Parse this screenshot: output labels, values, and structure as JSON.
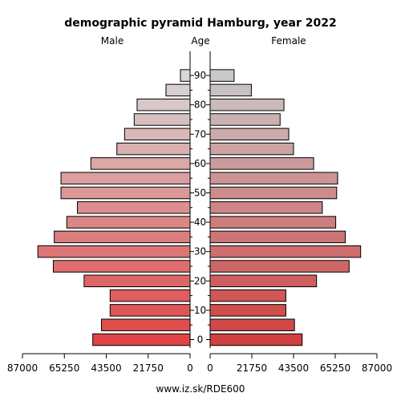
{
  "chart_data": {
    "type": "bar",
    "orientation": "horizontal-pyramid",
    "title": "demographic pyramid Hamburg, year 2022",
    "left_label": "Male",
    "center_label": "Age",
    "right_label": "Female",
    "footer": "www.iz.sk/RDE600",
    "age_groups": [
      "0-4",
      "5-9",
      "10-14",
      "15-19",
      "20-24",
      "25-29",
      "30-34",
      "35-39",
      "40-44",
      "45-49",
      "50-54",
      "55-59",
      "60-64",
      "65-69",
      "70-74",
      "75-79",
      "80-84",
      "85-89",
      "90+"
    ],
    "age_tick_labels": [
      "0",
      "10",
      "20",
      "30",
      "40",
      "50",
      "60",
      "70",
      "80",
      "90"
    ],
    "value_ticks": [
      0,
      21750,
      43500,
      65250,
      87000
    ],
    "value_tick_labels": [
      "0",
      "21750",
      "43500",
      "65250",
      "87000"
    ],
    "xlim": [
      0,
      87000
    ],
    "series": [
      {
        "name": "Male",
        "values": [
          50500,
          46000,
          41500,
          41500,
          55000,
          71000,
          79000,
          70500,
          64000,
          58500,
          67000,
          67000,
          51500,
          38000,
          34000,
          29000,
          27500,
          12500,
          5000
        ]
      },
      {
        "name": "Female",
        "values": [
          48000,
          44000,
          39500,
          39500,
          55500,
          72500,
          78500,
          70500,
          65500,
          58500,
          66000,
          66500,
          54000,
          43500,
          41000,
          36500,
          38500,
          21500,
          12500
        ]
      }
    ],
    "colors": {
      "bottom": "#e04545",
      "top": "#d8d8d8",
      "stroke": "#000000"
    }
  }
}
